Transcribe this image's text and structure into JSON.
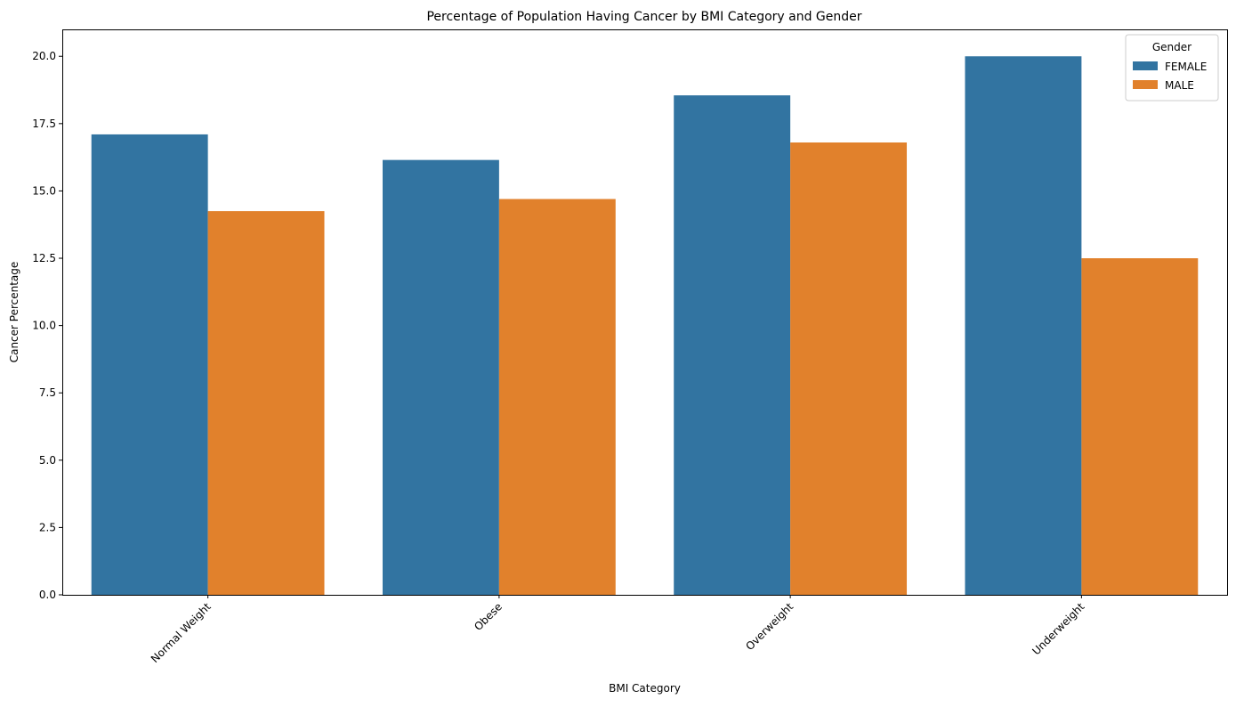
{
  "chart_data": {
    "type": "bar",
    "title": "Percentage of Population Having Cancer by BMI Category and Gender",
    "xlabel": "BMI Category",
    "ylabel": "Cancer Percentage",
    "categories": [
      "Normal Weight",
      "Obese",
      "Overweight",
      "Underweight"
    ],
    "series": [
      {
        "name": "FEMALE",
        "color": "#3274a1",
        "values": [
          17.1,
          16.15,
          18.55,
          20.0
        ]
      },
      {
        "name": "MALE",
        "color": "#e1812c",
        "values": [
          14.25,
          14.7,
          16.8,
          12.5
        ]
      }
    ],
    "ylim": [
      0,
      21
    ],
    "yticks": [
      "0.0",
      "2.5",
      "5.0",
      "7.5",
      "10.0",
      "12.5",
      "15.0",
      "17.5",
      "20.0"
    ],
    "grid": false,
    "legend": {
      "title": "Gender",
      "placement": "top-right"
    }
  }
}
